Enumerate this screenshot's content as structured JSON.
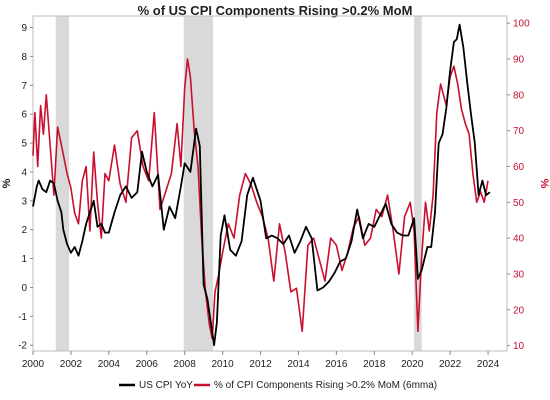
{
  "chart_data": {
    "type": "line",
    "title": "% of US CPI Components Rising >0.2% MoM",
    "ylabel": "%",
    "y2label": "%",
    "xlim": [
      2000,
      2025
    ],
    "ylim": [
      -2.2,
      9.4
    ],
    "y2lim": [
      8.5,
      102
    ],
    "x_ticks": [
      "2000",
      "2002",
      "2004",
      "2006",
      "2008",
      "2010",
      "2012",
      "2014",
      "2016",
      "2018",
      "2020",
      "2022",
      "2024"
    ],
    "y_ticks": [
      "-2",
      "-1",
      "0",
      "1",
      "2",
      "3",
      "4",
      "5",
      "6",
      "7",
      "8",
      "9"
    ],
    "y2_ticks": [
      "10",
      "20",
      "30",
      "40",
      "50",
      "60",
      "70",
      "80",
      "90",
      "100"
    ],
    "recessions": [
      [
        2001.2,
        2001.9
      ],
      [
        2007.95,
        2009.5
      ],
      [
        2020.1,
        2020.5
      ]
    ],
    "colors": {
      "cpi": "#000000",
      "components": "#c8102e",
      "recession": "#d9d9d9"
    },
    "legend_position": "bottom",
    "series": [
      {
        "name": "US CPI YoY",
        "axis": "left",
        "x": [
          2000.0,
          2000.2,
          2000.3,
          2000.5,
          2000.7,
          2000.9,
          2001.1,
          2001.3,
          2001.5,
          2001.6,
          2001.8,
          2002.0,
          2002.2,
          2002.4,
          2002.6,
          2002.8,
          2003.0,
          2003.2,
          2003.4,
          2003.6,
          2003.8,
          2004.0,
          2004.3,
          2004.6,
          2004.9,
          2005.2,
          2005.5,
          2005.75,
          2006.0,
          2006.3,
          2006.6,
          2006.9,
          2007.2,
          2007.5,
          2007.8,
          2008.0,
          2008.3,
          2008.5,
          2008.6,
          2008.8,
          2009.0,
          2009.2,
          2009.4,
          2009.55,
          2009.7,
          2009.9,
          2010.1,
          2010.4,
          2010.7,
          2011.0,
          2011.3,
          2011.6,
          2011.8,
          2012.0,
          2012.3,
          2012.6,
          2012.9,
          2013.2,
          2013.5,
          2013.8,
          2014.1,
          2014.4,
          2014.7,
          2015.0,
          2015.3,
          2015.6,
          2015.9,
          2016.2,
          2016.5,
          2016.8,
          2017.1,
          2017.4,
          2017.7,
          2018.0,
          2018.3,
          2018.6,
          2018.9,
          2019.2,
          2019.5,
          2019.8,
          2020.1,
          2020.3,
          2020.5,
          2020.8,
          2021.0,
          2021.2,
          2021.4,
          2021.6,
          2021.8,
          2022.0,
          2022.2,
          2022.35,
          2022.5,
          2022.7,
          2022.9,
          2023.1,
          2023.3,
          2023.5,
          2023.7,
          2023.9,
          2024.1
        ],
        "values": [
          2.8,
          3.5,
          3.7,
          3.4,
          3.3,
          3.7,
          3.6,
          3.0,
          2.6,
          2.0,
          1.5,
          1.2,
          1.4,
          1.1,
          1.6,
          2.2,
          2.6,
          3.0,
          2.1,
          2.2,
          1.9,
          1.9,
          2.6,
          3.2,
          3.5,
          3.1,
          3.3,
          4.7,
          4.0,
          3.5,
          3.9,
          2.0,
          2.8,
          2.4,
          3.5,
          4.3,
          4.0,
          5.0,
          5.5,
          4.9,
          0.1,
          -0.4,
          -1.3,
          -2.0,
          -1.2,
          1.8,
          2.5,
          1.3,
          1.1,
          1.6,
          3.2,
          3.8,
          3.4,
          3.0,
          1.7,
          1.8,
          1.7,
          1.5,
          1.8,
          1.2,
          1.6,
          2.1,
          1.7,
          -0.1,
          0.0,
          0.2,
          0.5,
          0.9,
          1.0,
          1.6,
          2.7,
          1.7,
          2.2,
          2.1,
          2.5,
          2.9,
          2.2,
          1.9,
          1.8,
          1.8,
          2.4,
          0.3,
          0.6,
          1.4,
          1.4,
          2.6,
          5.0,
          5.3,
          6.2,
          7.5,
          8.5,
          8.6,
          9.1,
          8.3,
          7.1,
          6.0,
          5.0,
          3.2,
          3.7,
          3.2,
          3.3
        ]
      },
      {
        "name": "% of CPI Components Rising >0.2% MoM (6mma)",
        "axis": "right",
        "x": [
          2000.0,
          2000.1,
          2000.25,
          2000.4,
          2000.55,
          2000.7,
          2000.9,
          2001.1,
          2001.3,
          2001.5,
          2001.8,
          2002.0,
          2002.2,
          2002.4,
          2002.6,
          2002.8,
          2003.0,
          2003.2,
          2003.4,
          2003.6,
          2003.8,
          2004.0,
          2004.3,
          2004.6,
          2004.9,
          2005.2,
          2005.5,
          2005.8,
          2006.1,
          2006.4,
          2006.7,
          2007.0,
          2007.3,
          2007.6,
          2007.8,
          2008.0,
          2008.15,
          2008.3,
          2008.5,
          2008.7,
          2008.9,
          2009.1,
          2009.3,
          2009.45,
          2009.6,
          2009.8,
          2010.0,
          2010.3,
          2010.6,
          2010.9,
          2011.2,
          2011.5,
          2011.8,
          2012.1,
          2012.4,
          2012.7,
          2013.0,
          2013.3,
          2013.6,
          2013.9,
          2014.2,
          2014.5,
          2014.8,
          2015.1,
          2015.4,
          2015.7,
          2016.0,
          2016.3,
          2016.6,
          2016.9,
          2017.2,
          2017.5,
          2017.8,
          2018.1,
          2018.4,
          2018.7,
          2019.0,
          2019.3,
          2019.6,
          2019.9,
          2020.1,
          2020.3,
          2020.5,
          2020.7,
          2020.9,
          2021.1,
          2021.3,
          2021.5,
          2021.8,
          2022.0,
          2022.2,
          2022.4,
          2022.6,
          2022.8,
          2023.0,
          2023.2,
          2023.4,
          2023.6,
          2023.8,
          2024.0
        ],
        "values": [
          63,
          75,
          60,
          77,
          69,
          80,
          66,
          52,
          71,
          66,
          58,
          54,
          47,
          44,
          56,
          60,
          42,
          64,
          50,
          40,
          58,
          56,
          66,
          55,
          50,
          68,
          70,
          60,
          56,
          75,
          48,
          53,
          58,
          72,
          60,
          82,
          90,
          85,
          70,
          60,
          40,
          25,
          16,
          12,
          25,
          30,
          36,
          44,
          40,
          52,
          58,
          55,
          50,
          46,
          40,
          28,
          44,
          36,
          25,
          26,
          14,
          38,
          40,
          34,
          28,
          40,
          38,
          31,
          36,
          43,
          46,
          38,
          40,
          48,
          46,
          52,
          42,
          30,
          46,
          50,
          42,
          14,
          35,
          50,
          42,
          52,
          75,
          83,
          77,
          85,
          88,
          83,
          76,
          72,
          69,
          58,
          50,
          53,
          50,
          56
        ]
      }
    ]
  }
}
